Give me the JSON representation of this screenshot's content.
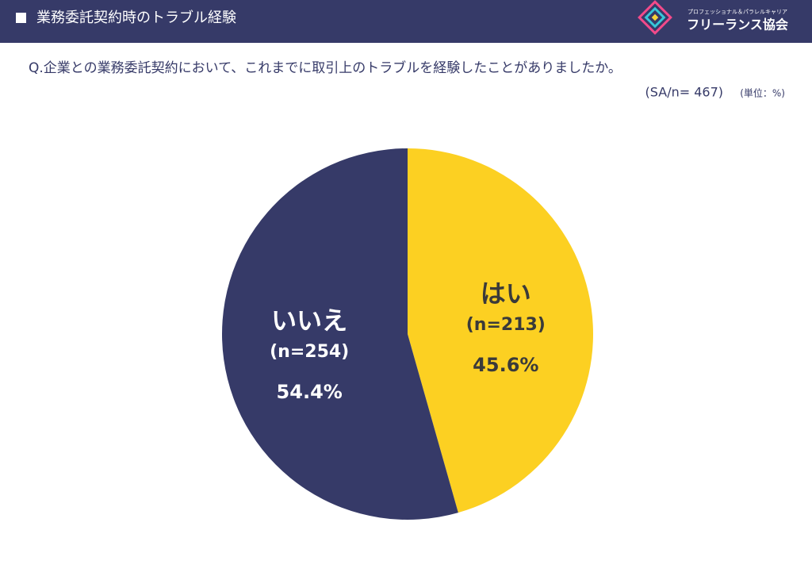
{
  "header": {
    "title": "業務委託契約時のトラブル経験",
    "logo_tagline": "プロフェッショナル＆パラレルキャリア",
    "logo_name": "フリーランス協会"
  },
  "chart_data": {
    "type": "pie",
    "title": "Q.企業との業務委託契約において、これまでに取引上のトラブルを経験したことがありましたか。",
    "subtitle": "(SA/n= 467)",
    "unit_note": "(単位：%)",
    "categories": [
      "はい",
      "いいえ"
    ],
    "count_labels": [
      "(n=213)",
      "(n=254)"
    ],
    "values": [
      45.6,
      54.4
    ],
    "value_labels": [
      "45.6%",
      "54.4%"
    ],
    "colors": [
      "#fcd022",
      "#363a68"
    ],
    "label_colors": [
      "#3a3a3a",
      "#ffffff"
    ]
  }
}
